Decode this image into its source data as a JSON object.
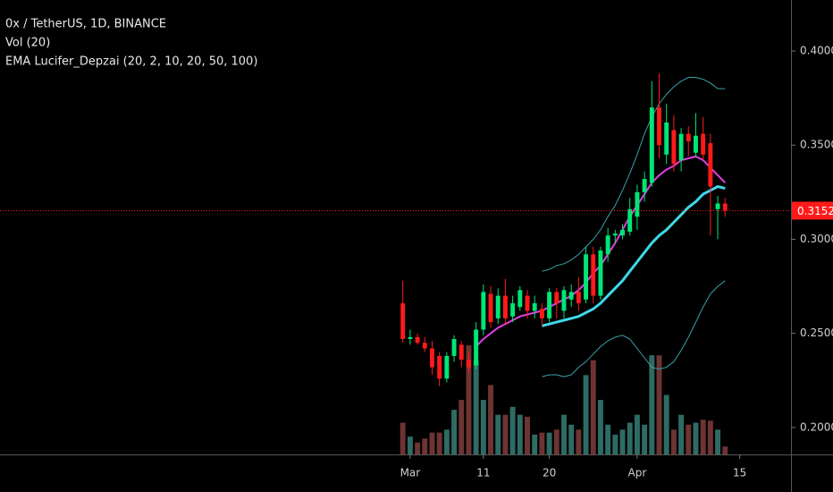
{
  "chart_data": {
    "type": "candlestick",
    "title": "0x / TetherUS, 1D, BINANCE",
    "legend_lines": [
      "Vol (20)",
      "EMA Lucifer_Depzai (20, 2, 10, 20, 50, 100)"
    ],
    "x": [
      "Feb 28",
      "Mar 1",
      "Mar 2",
      "Mar 3",
      "Mar 4",
      "Mar 5",
      "Mar 6",
      "Mar 7",
      "Mar 8",
      "Mar 9",
      "Mar 10",
      "Mar 11",
      "Mar 12",
      "Mar 13",
      "Mar 14",
      "Mar 15",
      "Mar 16",
      "Mar 17",
      "Mar 18",
      "Mar 19",
      "Mar 20",
      "Mar 21",
      "Mar 22",
      "Mar 23",
      "Mar 24",
      "Mar 25",
      "Mar 26",
      "Mar 27",
      "Mar 28",
      "Mar 29",
      "Mar 30",
      "Mar 31",
      "Apr 1",
      "Apr 2",
      "Apr 3",
      "Apr 4",
      "Apr 5",
      "Apr 6",
      "Apr 7",
      "Apr 8",
      "Apr 9",
      "Apr 10",
      "Apr 11",
      "Apr 12",
      "Apr 13"
    ],
    "open": [
      0.266,
      0.247,
      0.248,
      0.245,
      0.242,
      0.238,
      0.226,
      0.238,
      0.244,
      0.236,
      0.233,
      0.252,
      0.271,
      0.258,
      0.27,
      0.259,
      0.264,
      0.27,
      0.262,
      0.263,
      0.258,
      0.272,
      0.262,
      0.268,
      0.272,
      0.268,
      0.292,
      0.27,
      0.292,
      0.302,
      0.302,
      0.304,
      0.312,
      0.325,
      0.33,
      0.37,
      0.345,
      0.358,
      0.342,
      0.356,
      0.346,
      0.356,
      0.351,
      0.316,
      0.319
    ],
    "high": [
      0.278,
      0.252,
      0.25,
      0.248,
      0.246,
      0.24,
      0.24,
      0.249,
      0.246,
      0.24,
      0.256,
      0.276,
      0.275,
      0.274,
      0.279,
      0.27,
      0.275,
      0.273,
      0.27,
      0.266,
      0.274,
      0.274,
      0.275,
      0.276,
      0.28,
      0.296,
      0.296,
      0.296,
      0.306,
      0.305,
      0.308,
      0.322,
      0.329,
      0.336,
      0.384,
      0.388,
      0.372,
      0.366,
      0.359,
      0.36,
      0.367,
      0.365,
      0.356,
      0.323,
      0.322
    ],
    "low": [
      0.245,
      0.244,
      0.244,
      0.24,
      0.228,
      0.222,
      0.224,
      0.235,
      0.232,
      0.229,
      0.231,
      0.249,
      0.253,
      0.255,
      0.255,
      0.256,
      0.262,
      0.258,
      0.258,
      0.254,
      0.256,
      0.258,
      0.258,
      0.264,
      0.262,
      0.266,
      0.266,
      0.268,
      0.288,
      0.298,
      0.3,
      0.302,
      0.305,
      0.32,
      0.328,
      0.343,
      0.34,
      0.336,
      0.336,
      0.344,
      0.344,
      0.342,
      0.302,
      0.3,
      0.312
    ],
    "close": [
      0.247,
      0.248,
      0.245,
      0.242,
      0.232,
      0.226,
      0.238,
      0.247,
      0.236,
      0.232,
      0.252,
      0.272,
      0.256,
      0.27,
      0.258,
      0.266,
      0.273,
      0.262,
      0.266,
      0.258,
      0.272,
      0.266,
      0.273,
      0.272,
      0.266,
      0.292,
      0.27,
      0.294,
      0.302,
      0.303,
      0.305,
      0.316,
      0.325,
      0.332,
      0.37,
      0.35,
      0.362,
      0.34,
      0.356,
      0.352,
      0.355,
      0.345,
      0.328,
      0.319,
      0.3152
    ],
    "volume": [
      32,
      18,
      12,
      16,
      22,
      22,
      25,
      45,
      55,
      110,
      95,
      55,
      70,
      40,
      40,
      48,
      40,
      38,
      20,
      22,
      22,
      25,
      40,
      30,
      25,
      80,
      95,
      55,
      30,
      20,
      25,
      32,
      40,
      30,
      100,
      100,
      60,
      25,
      40,
      30,
      32,
      35,
      34,
      25,
      8
    ],
    "up_color": "#00e676",
    "down_color": "#ff1a1a",
    "volume_up_color": "#2e6b64",
    "volume_down_color": "#6e3333",
    "volume_lim": [
      0,
      120
    ],
    "indicators": [
      {
        "color": "#e040e0",
        "width": 2,
        "values": [
          null,
          null,
          null,
          null,
          null,
          null,
          null,
          null,
          null,
          null,
          0.243,
          0.247,
          0.25,
          0.253,
          0.255,
          0.257,
          0.259,
          0.26,
          0.261,
          0.262,
          0.264,
          0.266,
          0.268,
          0.27,
          0.273,
          0.277,
          0.282,
          0.286,
          0.292,
          0.298,
          0.305,
          0.312,
          0.318,
          0.324,
          0.33,
          0.334,
          0.337,
          0.339,
          0.342,
          0.343,
          0.344,
          0.342,
          0.338,
          0.334,
          0.33
        ]
      },
      {
        "color": "#40d8e8",
        "width": 3,
        "values": [
          null,
          null,
          null,
          null,
          null,
          null,
          null,
          null,
          null,
          null,
          null,
          null,
          null,
          null,
          null,
          null,
          null,
          null,
          null,
          0.254,
          0.255,
          0.256,
          0.257,
          0.258,
          0.259,
          0.261,
          0.263,
          0.266,
          0.27,
          0.274,
          0.278,
          0.283,
          0.288,
          0.293,
          0.298,
          0.302,
          0.305,
          0.309,
          0.313,
          0.317,
          0.32,
          0.324,
          0.326,
          0.328,
          0.327
        ]
      },
      {
        "color": "#3aa0a8",
        "width": 1,
        "values": [
          null,
          null,
          null,
          null,
          null,
          null,
          null,
          null,
          null,
          null,
          null,
          null,
          null,
          null,
          null,
          null,
          null,
          null,
          null,
          0.283,
          0.284,
          0.286,
          0.287,
          0.289,
          0.292,
          0.296,
          0.3,
          0.305,
          0.312,
          0.318,
          0.326,
          0.335,
          0.345,
          0.356,
          0.365,
          0.372,
          0.377,
          0.381,
          0.384,
          0.386,
          0.386,
          0.385,
          0.383,
          0.38,
          0.38
        ]
      },
      {
        "color": "#3aa0a8",
        "width": 1,
        "values": [
          null,
          null,
          null,
          null,
          null,
          null,
          null,
          null,
          null,
          null,
          null,
          null,
          null,
          null,
          null,
          null,
          null,
          null,
          null,
          0.227,
          0.228,
          0.228,
          0.227,
          0.228,
          0.232,
          0.235,
          0.239,
          0.243,
          0.246,
          0.248,
          0.249,
          0.247,
          0.242,
          0.237,
          0.232,
          0.231,
          0.232,
          0.235,
          0.241,
          0.248,
          0.256,
          0.264,
          0.271,
          0.275,
          0.278
        ]
      }
    ],
    "ylim": [
      0.1857,
      0.4271
    ],
    "yticks": [
      {
        "value": 0.4,
        "label": "0.4000"
      },
      {
        "value": 0.35,
        "label": "0.3500"
      },
      {
        "value": 0.3,
        "label": "0.3000"
      },
      {
        "value": 0.25,
        "label": "0.2500"
      },
      {
        "value": 0.2,
        "label": "0.2000"
      }
    ],
    "xlim": [
      "Jan 4",
      "Apr 22"
    ],
    "xticks": [
      {
        "value": "Mar 1",
        "label": "Mar"
      },
      {
        "value": "Mar 11",
        "label": "11"
      },
      {
        "value": "Mar 20",
        "label": "20"
      },
      {
        "value": "Apr 1",
        "label": "Apr"
      },
      {
        "value": "Apr 15",
        "label": "15"
      }
    ],
    "last_price": 0.3152,
    "last_price_color": "#ff1a1a"
  }
}
